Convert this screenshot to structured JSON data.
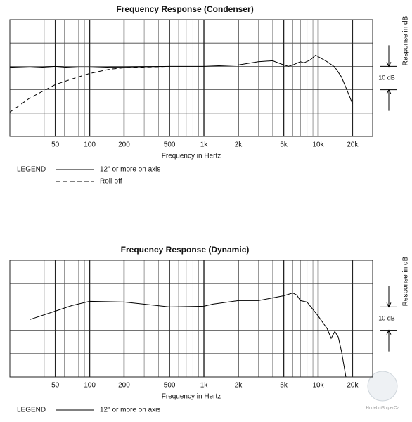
{
  "chart_data": [
    {
      "type": "line",
      "title": "Frequency Response (Condenser)",
      "x_label": "Frequency in Hertz",
      "y_label": "Response in dB",
      "scale_label": "10 dB",
      "legend_title": "LEGEND",
      "x_log": true,
      "grid": true,
      "xlim": [
        20,
        30000
      ],
      "ylim": [
        -30,
        20
      ],
      "yticks": [
        -30,
        -20,
        -10,
        0,
        10,
        20
      ],
      "xticks": [
        50,
        100,
        200,
        500,
        {
          "value": 1000,
          "label": "1k"
        },
        {
          "value": 2000,
          "label": "2k"
        },
        {
          "value": 5000,
          "label": "5k"
        },
        {
          "value": 10000,
          "label": "10k"
        },
        {
          "value": 20000,
          "label": "20k"
        }
      ],
      "x_minor_ticks": [
        30,
        40,
        60,
        70,
        80,
        90,
        300,
        400,
        600,
        700,
        800,
        900,
        3000,
        4000,
        6000,
        7000,
        8000,
        9000
      ],
      "series": [
        {
          "name": "12\" or more on axis",
          "color": "#000000",
          "dash": false,
          "x": [
            20,
            30,
            40,
            50,
            60,
            80,
            100,
            150,
            200,
            500,
            1000,
            2000,
            3000,
            4000,
            5000,
            5500,
            6000,
            7000,
            7500,
            8500,
            9500,
            10000,
            12000,
            14000,
            16000,
            18000,
            20000
          ],
          "values": [
            -0.3,
            -0.6,
            -0.3,
            0,
            -0.3,
            -0.6,
            -0.6,
            -0.3,
            -0.3,
            0,
            0,
            0.6,
            2,
            2.4,
            0.6,
            0,
            0.6,
            2,
            1.5,
            2.7,
            4.8,
            4.2,
            2,
            -0.3,
            -4.5,
            -10.5,
            -16
          ]
        },
        {
          "name": "Roll-off",
          "color": "#000000",
          "dash": true,
          "x": [
            20,
            30,
            50,
            70,
            100,
            150,
            200,
            300,
            500
          ],
          "values": [
            -19.6,
            -13.5,
            -7.8,
            -5.4,
            -3,
            -1.2,
            -0.6,
            -0.3,
            0
          ]
        }
      ]
    },
    {
      "type": "line",
      "title": "Frequency Response (Dynamic)",
      "x_label": "Frequency in Hertz",
      "y_label": "Response in dB",
      "scale_label": "10 dB",
      "legend_title": "LEGEND",
      "x_log": true,
      "grid": true,
      "xlim": [
        20,
        30000
      ],
      "ylim": [
        -30,
        20
      ],
      "yticks": [
        -30,
        -20,
        -10,
        0,
        10,
        20
      ],
      "xticks": [
        50,
        100,
        200,
        500,
        {
          "value": 1000,
          "label": "1k"
        },
        {
          "value": 2000,
          "label": "2k"
        },
        {
          "value": 5000,
          "label": "5k"
        },
        {
          "value": 10000,
          "label": "10k"
        },
        {
          "value": 20000,
          "label": "20k"
        }
      ],
      "x_minor_ticks": [
        30,
        40,
        60,
        70,
        80,
        90,
        300,
        400,
        600,
        700,
        800,
        900,
        3000,
        4000,
        6000,
        7000,
        8000,
        9000
      ],
      "series": [
        {
          "name": "12\" or more on axis",
          "color": "#000000",
          "dash": false,
          "x": [
            30,
            50,
            70,
            100,
            200,
            500,
            1000,
            1200,
            2000,
            3000,
            4000,
            5000,
            6000,
            6500,
            7000,
            8000,
            10000,
            12000,
            13000,
            14000,
            15000,
            16000,
            17500
          ],
          "values": [
            -5.4,
            -1.8,
            0.6,
            2.4,
            2.1,
            0,
            0.3,
            1.2,
            2.7,
            2.7,
            3.9,
            4.8,
            6,
            5.1,
            2.7,
            2.1,
            -3.9,
            -9.3,
            -13.5,
            -10.5,
            -12.9,
            -18.9,
            -30
          ]
        }
      ]
    }
  ],
  "watermark": "HudebniSniperCz"
}
